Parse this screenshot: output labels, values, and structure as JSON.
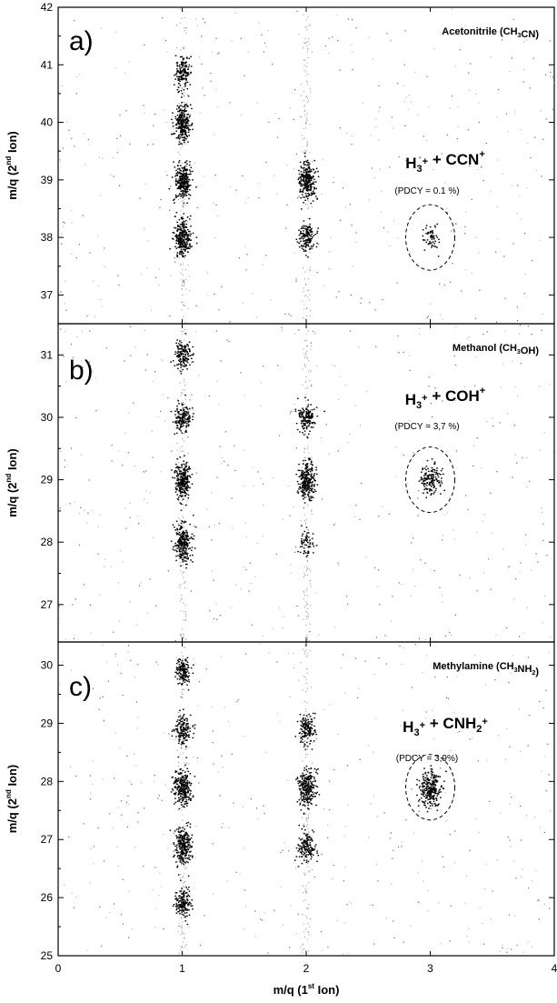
{
  "chart_data": [
    {
      "type": "scatter",
      "panel_letter": "a)",
      "title": "Acetonitrile (CH3CN)",
      "ylabel": "m/q (2nd Ion)",
      "xlim": [
        0,
        4
      ],
      "ylim": [
        36.5,
        42
      ],
      "y_ticks": [
        37,
        38,
        39,
        40,
        41,
        42
      ],
      "annotation": "H3+ + CCN+",
      "pdcy": "(PDCY = 0.1 %)",
      "clusters": [
        {
          "x": 1,
          "y": 40.9,
          "intensity": "medium"
        },
        {
          "x": 1,
          "y": 40.0,
          "intensity": "high"
        },
        {
          "x": 1,
          "y": 39.0,
          "intensity": "high"
        },
        {
          "x": 1,
          "y": 38.0,
          "intensity": "high"
        },
        {
          "x": 2,
          "y": 39.0,
          "intensity": "high"
        },
        {
          "x": 2,
          "y": 38.0,
          "intensity": "medium"
        },
        {
          "x": 3,
          "y": 38.0,
          "intensity": "low"
        }
      ],
      "highlight_ellipse": {
        "x": 3,
        "y": 38.0
      }
    },
    {
      "type": "scatter",
      "panel_letter": "b)",
      "title": "Methanol (CH3OH)",
      "ylabel": "m/q (2nd Ion)",
      "xlim": [
        0,
        4
      ],
      "ylim": [
        26.4,
        31.5
      ],
      "y_ticks": [
        27,
        28,
        29,
        30,
        31
      ],
      "annotation": "H3+ + COH+",
      "pdcy": "(PDCY = 3,7 %)",
      "clusters": [
        {
          "x": 1,
          "y": 31.0,
          "intensity": "medium"
        },
        {
          "x": 1,
          "y": 30.0,
          "intensity": "medium"
        },
        {
          "x": 1,
          "y": 29.0,
          "intensity": "high"
        },
        {
          "x": 1,
          "y": 28.0,
          "intensity": "high"
        },
        {
          "x": 2,
          "y": 30.0,
          "intensity": "medium"
        },
        {
          "x": 2,
          "y": 29.0,
          "intensity": "high"
        },
        {
          "x": 2,
          "y": 28.0,
          "intensity": "low"
        },
        {
          "x": 3,
          "y": 29.0,
          "intensity": "medium"
        }
      ],
      "highlight_ellipse": {
        "x": 3,
        "y": 29.0
      }
    },
    {
      "type": "scatter",
      "panel_letter": "c)",
      "title": "Methylamine (CH3NH2)",
      "ylabel": "m/q (2nd Ion)",
      "xlabel": "m/q (1st Ion)",
      "xlim": [
        0,
        4
      ],
      "x_ticks": [
        0,
        1,
        2,
        3,
        4
      ],
      "ylim": [
        25,
        30.4
      ],
      "y_ticks": [
        25,
        26,
        27,
        28,
        29,
        30
      ],
      "annotation": "H3+ + CNH2+",
      "pdcy": "(PDCY = 3,9%)",
      "clusters": [
        {
          "x": 1,
          "y": 29.9,
          "intensity": "medium"
        },
        {
          "x": 1,
          "y": 28.9,
          "intensity": "medium"
        },
        {
          "x": 1,
          "y": 27.9,
          "intensity": "high"
        },
        {
          "x": 1,
          "y": 26.9,
          "intensity": "high"
        },
        {
          "x": 1,
          "y": 25.9,
          "intensity": "medium"
        },
        {
          "x": 2,
          "y": 28.9,
          "intensity": "medium"
        },
        {
          "x": 2,
          "y": 27.9,
          "intensity": "high"
        },
        {
          "x": 2,
          "y": 26.9,
          "intensity": "medium"
        },
        {
          "x": 3,
          "y": 27.9,
          "intensity": "high"
        }
      ],
      "highlight_ellipse": {
        "x": 3,
        "y": 27.9
      }
    }
  ]
}
